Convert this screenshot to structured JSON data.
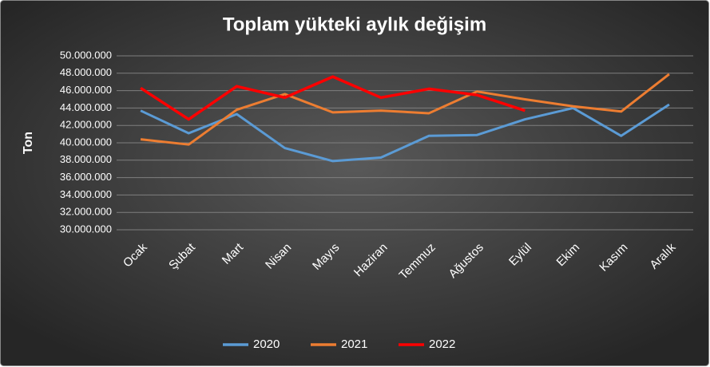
{
  "chart_data": {
    "type": "line",
    "title": "Toplam yükteki aylık değişim",
    "y_label": "Ton",
    "categories": [
      "Ocak",
      "Şubat",
      "Mart",
      "Nisan",
      "Mayıs",
      "Haziran",
      "Temmuz",
      "Ağustos",
      "Eylül",
      "Ekim",
      "Kasım",
      "Aralık"
    ],
    "series": [
      {
        "name": "2020",
        "color": "#5b9bd5",
        "values": [
          43700000,
          41100000,
          43300000,
          39400000,
          37900000,
          38300000,
          40800000,
          40900000,
          42700000,
          44000000,
          40800000,
          44400000
        ]
      },
      {
        "name": "2021",
        "color": "#ed7d31",
        "values": [
          40400000,
          39800000,
          43800000,
          45600000,
          43500000,
          43700000,
          43400000,
          45900000,
          45000000,
          44200000,
          43600000,
          47900000
        ]
      },
      {
        "name": "2022",
        "color": "#ff0000",
        "values": [
          46300000,
          42700000,
          46500000,
          45200000,
          47600000,
          45200000,
          46200000,
          45500000,
          43700000,
          null,
          null,
          null
        ]
      }
    ],
    "ylim": [
      30000000,
      50000000
    ],
    "yticks": [
      {
        "value": 30000000,
        "label": "30.000.000"
      },
      {
        "value": 32000000,
        "label": "32.000.000"
      },
      {
        "value": 34000000,
        "label": "34.000.000"
      },
      {
        "value": 36000000,
        "label": "36.000.000"
      },
      {
        "value": 38000000,
        "label": "38.000.000"
      },
      {
        "value": 40000000,
        "label": "40.000.000"
      },
      {
        "value": 42000000,
        "label": "42.000.000"
      },
      {
        "value": 44000000,
        "label": "44.000.000"
      },
      {
        "value": 46000000,
        "label": "46.000.000"
      },
      {
        "value": 48000000,
        "label": "48.000.000"
      },
      {
        "value": 50000000,
        "label": "50.000.000"
      }
    ],
    "grid": true,
    "legend": "bottom"
  }
}
